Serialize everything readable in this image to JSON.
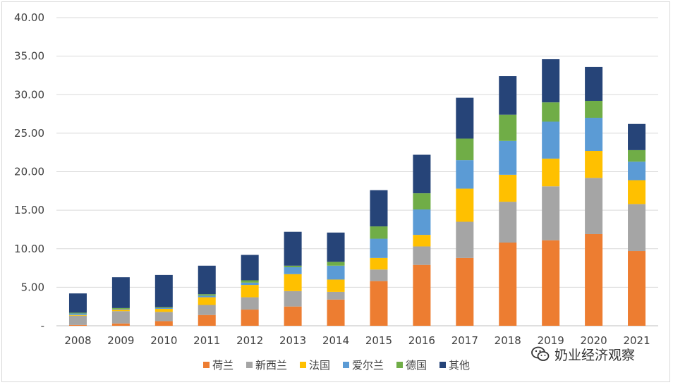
{
  "chart_data": {
    "type": "bar",
    "stacked": true,
    "title": "",
    "xlabel": "",
    "ylabel": "",
    "ylim": [
      0,
      40
    ],
    "y_ticks": [
      "-",
      "5.00",
      "10.00",
      "15.00",
      "20.00",
      "25.00",
      "30.00",
      "35.00",
      "40.00"
    ],
    "grid": true,
    "legend_position": "bottom",
    "categories": [
      "2008",
      "2009",
      "2010",
      "2011",
      "2012",
      "2013",
      "2014",
      "2015",
      "2016",
      "2017",
      "2018",
      "2019",
      "2020",
      "2021"
    ],
    "series": [
      {
        "name": "荷兰",
        "color": "#ed7d31",
        "values": [
          0.1,
          0.3,
          0.6,
          1.4,
          2.1,
          2.5,
          3.4,
          5.8,
          7.9,
          8.8,
          10.8,
          11.1,
          11.9,
          9.7
        ]
      },
      {
        "name": "新西兰",
        "color": "#a5a5a5",
        "values": [
          1.2,
          1.6,
          1.2,
          1.3,
          1.6,
          2.0,
          1.0,
          1.5,
          2.4,
          4.7,
          5.3,
          7.0,
          7.3,
          6.1
        ]
      },
      {
        "name": "法国",
        "color": "#ffc000",
        "values": [
          0.1,
          0.2,
          0.4,
          1.0,
          1.6,
          2.2,
          1.6,
          1.5,
          1.5,
          4.3,
          3.5,
          3.6,
          3.5,
          3.1
        ]
      },
      {
        "name": "爱尔兰",
        "color": "#5b9bd5",
        "values": [
          0.2,
          0.1,
          0.1,
          0.2,
          0.3,
          0.9,
          1.8,
          2.5,
          3.3,
          3.7,
          4.4,
          4.8,
          4.3,
          2.4
        ]
      },
      {
        "name": "德国",
        "color": "#70ad47",
        "values": [
          0.1,
          0.1,
          0.1,
          0.2,
          0.3,
          0.2,
          0.5,
          1.6,
          2.1,
          2.8,
          3.4,
          2.5,
          2.2,
          1.5
        ]
      },
      {
        "name": "其他",
        "color": "#264478",
        "values": [
          2.5,
          4.0,
          4.2,
          3.7,
          3.3,
          4.4,
          3.8,
          4.7,
          5.0,
          5.3,
          5.0,
          5.6,
          4.4,
          3.4
        ]
      }
    ]
  },
  "watermark": {
    "text": "奶业经济观察",
    "icon": "wechat-icon"
  }
}
